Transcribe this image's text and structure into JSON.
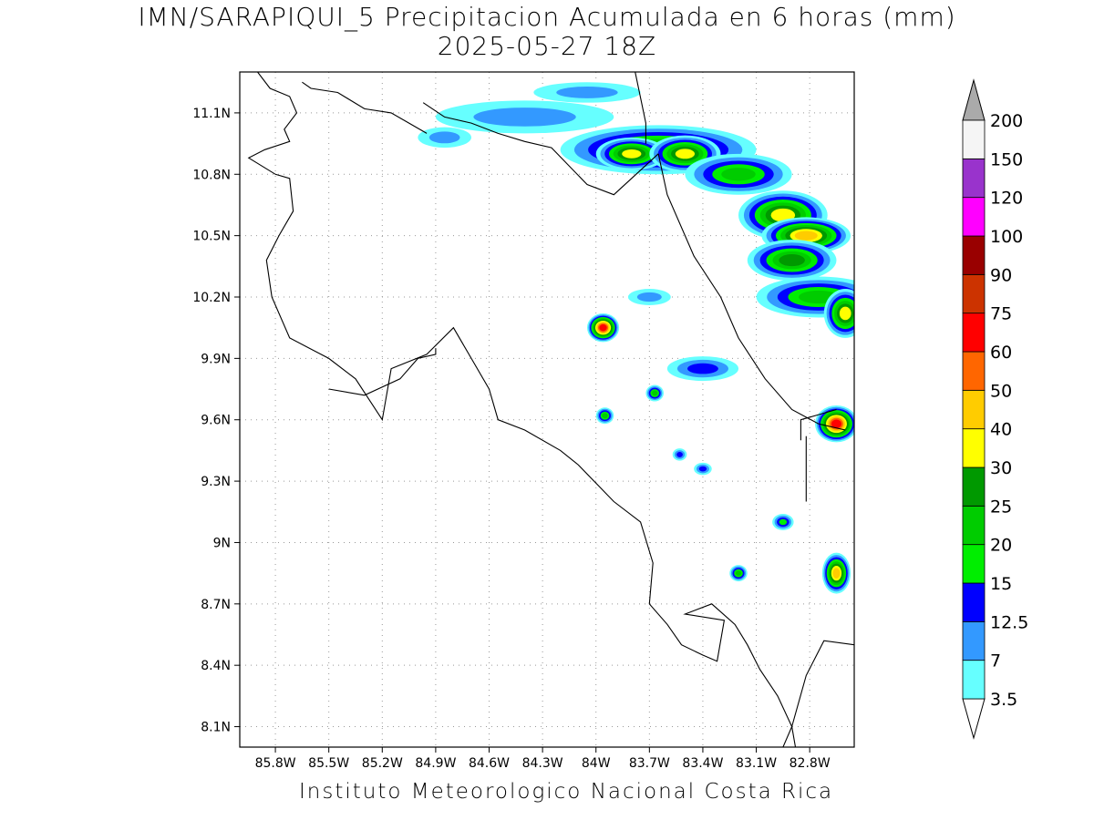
{
  "title": "IMN/SARAPIQUI_5 Precipitacion Acumulada en 6 horas (mm)",
  "subtitle": "2025-05-27 18Z",
  "footer": "Instituto Meteorologico Nacional Costa Rica",
  "map": {
    "lon_range": [
      -86.0,
      -82.55
    ],
    "lat_range": [
      8.0,
      11.3
    ],
    "grid": true,
    "lon_ticks": [
      {
        "value": -85.8,
        "label": "85.8W"
      },
      {
        "value": -85.5,
        "label": "85.5W"
      },
      {
        "value": -85.2,
        "label": "85.2W"
      },
      {
        "value": -84.9,
        "label": "84.9W"
      },
      {
        "value": -84.6,
        "label": "84.6W"
      },
      {
        "value": -84.3,
        "label": "84.3W"
      },
      {
        "value": -84.0,
        "label": "84W"
      },
      {
        "value": -83.7,
        "label": "83.7W"
      },
      {
        "value": -83.4,
        "label": "83.4W"
      },
      {
        "value": -83.1,
        "label": "83.1W"
      },
      {
        "value": -82.8,
        "label": "82.8W"
      }
    ],
    "lat_ticks": [
      {
        "value": 11.1,
        "label": "11.1N"
      },
      {
        "value": 10.8,
        "label": "10.8N"
      },
      {
        "value": 10.5,
        "label": "10.5N"
      },
      {
        "value": 10.2,
        "label": "10.2N"
      },
      {
        "value": 9.9,
        "label": "9.9N"
      },
      {
        "value": 9.6,
        "label": "9.6N"
      },
      {
        "value": 9.3,
        "label": "9.3N"
      },
      {
        "value": 9.0,
        "label": "9N"
      },
      {
        "value": 8.7,
        "label": "8.7N"
      },
      {
        "value": 8.4,
        "label": "8.4N"
      },
      {
        "value": 8.1,
        "label": "8.1N"
      }
    ],
    "coastlines": [
      [
        [
          -85.9,
          11.3
        ],
        [
          -85.83,
          11.22
        ],
        [
          -85.72,
          11.18
        ],
        [
          -85.68,
          11.1
        ],
        [
          -85.75,
          11.02
        ],
        [
          -85.72,
          10.96
        ],
        [
          -85.86,
          10.92
        ],
        [
          -85.95,
          10.88
        ],
        [
          -85.8,
          10.8
        ],
        [
          -85.72,
          10.78
        ],
        [
          -85.7,
          10.62
        ],
        [
          -85.78,
          10.5
        ],
        [
          -85.85,
          10.38
        ],
        [
          -85.82,
          10.2
        ],
        [
          -85.72,
          10.0
        ],
        [
          -85.5,
          9.9
        ],
        [
          -85.35,
          9.8
        ],
        [
          -85.2,
          9.6
        ],
        [
          -85.15,
          9.85
        ],
        [
          -84.95,
          9.92
        ],
        [
          -84.8,
          10.05
        ],
        [
          -84.7,
          9.9
        ],
        [
          -84.6,
          9.75
        ],
        [
          -84.55,
          9.6
        ],
        [
          -84.4,
          9.55
        ],
        [
          -84.2,
          9.45
        ],
        [
          -84.1,
          9.38
        ],
        [
          -83.9,
          9.2
        ],
        [
          -83.75,
          9.1
        ],
        [
          -83.68,
          8.9
        ],
        [
          -83.7,
          8.7
        ],
        [
          -83.6,
          8.6
        ],
        [
          -83.52,
          8.5
        ],
        [
          -83.4,
          8.45
        ],
        [
          -83.32,
          8.42
        ],
        [
          -83.28,
          8.62
        ],
        [
          -83.5,
          8.65
        ],
        [
          -83.35,
          8.7
        ],
        [
          -83.22,
          8.6
        ],
        [
          -83.15,
          8.5
        ],
        [
          -83.08,
          8.38
        ],
        [
          -82.98,
          8.25
        ],
        [
          -82.9,
          8.1
        ],
        [
          -82.88,
          8.0
        ]
      ],
      [
        [
          -85.5,
          9.75
        ],
        [
          -85.3,
          9.72
        ],
        [
          -85.1,
          9.8
        ],
        [
          -85.0,
          9.9
        ],
        [
          -84.9,
          9.92
        ],
        [
          -84.9,
          9.95
        ]
      ],
      [
        [
          -84.97,
          11.15
        ],
        [
          -84.85,
          11.08
        ],
        [
          -84.7,
          11.05
        ],
        [
          -84.55,
          11.0
        ],
        [
          -84.4,
          10.96
        ],
        [
          -84.25,
          10.93
        ],
        [
          -84.05,
          10.75
        ],
        [
          -83.9,
          10.7
        ],
        [
          -83.75,
          10.82
        ],
        [
          -83.65,
          10.9
        ]
      ],
      [
        [
          -83.65,
          10.9
        ],
        [
          -83.6,
          10.7
        ],
        [
          -83.45,
          10.4
        ],
        [
          -83.3,
          10.2
        ],
        [
          -83.2,
          10.0
        ],
        [
          -83.05,
          9.8
        ],
        [
          -82.9,
          9.65
        ],
        [
          -82.75,
          9.58
        ],
        [
          -82.6,
          9.55
        ]
      ],
      [
        [
          -82.65,
          9.65
        ],
        [
          -82.85,
          9.6
        ],
        [
          -82.85,
          9.5
        ]
      ],
      [
        [
          -82.82,
          9.52
        ],
        [
          -82.82,
          9.3
        ],
        [
          -82.82,
          9.2
        ]
      ],
      [
        [
          -83.78,
          11.3
        ],
        [
          -83.72,
          11.05
        ],
        [
          -83.72,
          10.95
        ]
      ],
      [
        [
          -85.65,
          11.25
        ],
        [
          -85.6,
          11.22
        ],
        [
          -85.45,
          11.2
        ],
        [
          -85.3,
          11.12
        ],
        [
          -85.15,
          11.1
        ],
        [
          -85.05,
          11.05
        ],
        [
          -84.95,
          11.0
        ]
      ],
      [
        [
          -82.55,
          8.5
        ],
        [
          -82.72,
          8.52
        ],
        [
          -82.82,
          8.35
        ],
        [
          -82.9,
          8.1
        ],
        [
          -82.95,
          8.0
        ]
      ]
    ]
  },
  "colorbar": {
    "levels": [
      "3.5",
      "7",
      "12.5",
      "15",
      "20",
      "25",
      "30",
      "40",
      "50",
      "60",
      "75",
      "90",
      "100",
      "120",
      "150",
      "200"
    ],
    "colors": [
      "#66ffff",
      "#3399ff",
      "#0000ff",
      "#00ee00",
      "#00cc00",
      "#009900",
      "#ffff00",
      "#ffcc00",
      "#ff6600",
      "#ff0000",
      "#cc3300",
      "#990000",
      "#ff00ff",
      "#9933cc",
      "#f5f5f5",
      "#aaaaaa"
    ]
  },
  "precip_cells": [
    {
      "lon": -83.65,
      "lat": 10.92,
      "rx": 0.55,
      "ry": 0.12,
      "mm": 28
    },
    {
      "lon": -83.8,
      "lat": 10.9,
      "rx": 0.2,
      "ry": 0.08,
      "mm": 35
    },
    {
      "lon": -83.5,
      "lat": 10.9,
      "rx": 0.2,
      "ry": 0.09,
      "mm": 32
    },
    {
      "lon": -83.2,
      "lat": 10.8,
      "rx": 0.3,
      "ry": 0.1,
      "mm": 22
    },
    {
      "lon": -82.95,
      "lat": 10.6,
      "rx": 0.25,
      "ry": 0.12,
      "mm": 38
    },
    {
      "lon": -82.82,
      "lat": 10.5,
      "rx": 0.25,
      "ry": 0.09,
      "mm": 42
    },
    {
      "lon": -82.9,
      "lat": 10.38,
      "rx": 0.25,
      "ry": 0.1,
      "mm": 25
    },
    {
      "lon": -82.75,
      "lat": 10.2,
      "rx": 0.35,
      "ry": 0.1,
      "mm": 24
    },
    {
      "lon": -82.6,
      "lat": 10.12,
      "rx": 0.12,
      "ry": 0.12,
      "mm": 33
    },
    {
      "lon": -84.4,
      "lat": 11.08,
      "rx": 0.5,
      "ry": 0.08,
      "mm": 9
    },
    {
      "lon": -84.85,
      "lat": 10.98,
      "rx": 0.15,
      "ry": 0.05,
      "mm": 8
    },
    {
      "lon": -84.05,
      "lat": 11.2,
      "rx": 0.3,
      "ry": 0.05,
      "mm": 7
    },
    {
      "lon": -83.96,
      "lat": 10.05,
      "rx": 0.09,
      "ry": 0.07,
      "mm": 62
    },
    {
      "lon": -83.4,
      "lat": 9.85,
      "rx": 0.2,
      "ry": 0.06,
      "mm": 13
    },
    {
      "lon": -82.65,
      "lat": 9.58,
      "rx": 0.12,
      "ry": 0.09,
      "mm": 68
    },
    {
      "lon": -83.95,
      "lat": 9.62,
      "rx": 0.05,
      "ry": 0.04,
      "mm": 22
    },
    {
      "lon": -83.67,
      "lat": 9.73,
      "rx": 0.05,
      "ry": 0.04,
      "mm": 22
    },
    {
      "lon": -83.7,
      "lat": 10.2,
      "rx": 0.12,
      "ry": 0.04,
      "mm": 10
    },
    {
      "lon": -82.65,
      "lat": 8.85,
      "rx": 0.08,
      "ry": 0.1,
      "mm": 45
    },
    {
      "lon": -82.95,
      "lat": 9.1,
      "rx": 0.06,
      "ry": 0.04,
      "mm": 18
    },
    {
      "lon": -83.2,
      "lat": 8.85,
      "rx": 0.05,
      "ry": 0.04,
      "mm": 20
    },
    {
      "lon": -83.53,
      "lat": 9.43,
      "rx": 0.04,
      "ry": 0.03,
      "mm": 14
    },
    {
      "lon": -83.4,
      "lat": 9.36,
      "rx": 0.05,
      "ry": 0.03,
      "mm": 13
    }
  ]
}
